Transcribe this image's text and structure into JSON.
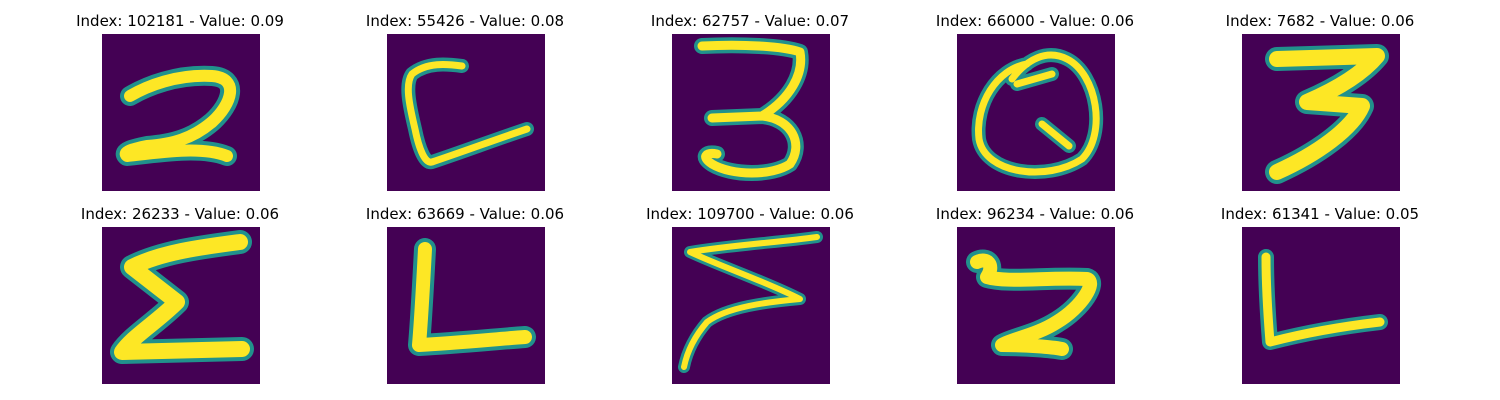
{
  "figure": {
    "background_color": "#ffffff",
    "image_colormap": {
      "background": "#440154",
      "edge": "#21918c",
      "stroke": "#fde725"
    },
    "panels": [
      {
        "title": "Index: 102181 - Value: 0.09",
        "glyph": "digit-2"
      },
      {
        "title": "Index: 55426 - Value: 0.08",
        "glyph": "letter-C"
      },
      {
        "title": "Index: 62757 - Value: 0.07",
        "glyph": "digit-3"
      },
      {
        "title": "Index: 66000 - Value: 0.06",
        "glyph": "letter-Q"
      },
      {
        "title": "Index: 7682 - Value: 0.06",
        "glyph": "digit-3-bold"
      },
      {
        "title": "Index: 26233 - Value: 0.06",
        "glyph": "sigma"
      },
      {
        "title": "Index: 63669 - Value: 0.06",
        "glyph": "letter-L"
      },
      {
        "title": "Index: 109700 - Value: 0.06",
        "glyph": "zigzag"
      },
      {
        "title": "Index: 96234 - Value: 0.06",
        "glyph": "digit-5-like"
      },
      {
        "title": "Index: 61341 - Value: 0.05",
        "glyph": "letter-L-thin"
      }
    ]
  }
}
